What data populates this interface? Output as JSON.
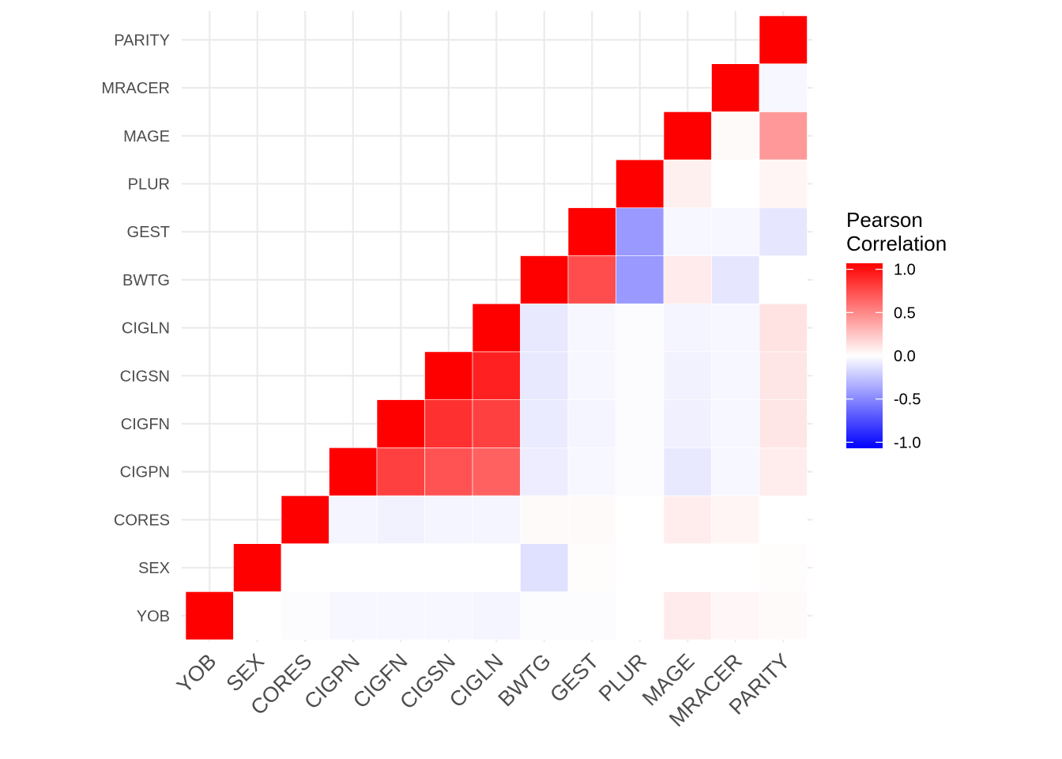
{
  "chart_data": {
    "type": "heatmap",
    "layout": "upper-triangle",
    "variables": [
      "YOB",
      "SEX",
      "CORES",
      "CIGPN",
      "CIGFN",
      "CIGSN",
      "CIGLN",
      "BWTG",
      "GEST",
      "PLUR",
      "MAGE",
      "MRACER",
      "PARITY"
    ],
    "cells": [
      {
        "x": "YOB",
        "y": "YOB",
        "value": 1.0
      },
      {
        "x": "SEX",
        "y": "YOB",
        "value": 0.0
      },
      {
        "x": "CORES",
        "y": "YOB",
        "value": -0.01
      },
      {
        "x": "CIGPN",
        "y": "YOB",
        "value": -0.03
      },
      {
        "x": "CIGFN",
        "y": "YOB",
        "value": -0.03
      },
      {
        "x": "CIGSN",
        "y": "YOB",
        "value": -0.03
      },
      {
        "x": "CIGLN",
        "y": "YOB",
        "value": -0.04
      },
      {
        "x": "BWTG",
        "y": "YOB",
        "value": -0.01
      },
      {
        "x": "GEST",
        "y": "YOB",
        "value": -0.01
      },
      {
        "x": "PLUR",
        "y": "YOB",
        "value": 0.0
      },
      {
        "x": "MAGE",
        "y": "YOB",
        "value": 0.08
      },
      {
        "x": "MRACER",
        "y": "YOB",
        "value": 0.03
      },
      {
        "x": "PARITY",
        "y": "YOB",
        "value": 0.02
      },
      {
        "x": "SEX",
        "y": "SEX",
        "value": 1.0
      },
      {
        "x": "CORES",
        "y": "SEX",
        "value": 0.0
      },
      {
        "x": "CIGPN",
        "y": "SEX",
        "value": 0.0
      },
      {
        "x": "CIGFN",
        "y": "SEX",
        "value": 0.0
      },
      {
        "x": "CIGSN",
        "y": "SEX",
        "value": 0.0
      },
      {
        "x": "CIGLN",
        "y": "SEX",
        "value": 0.0
      },
      {
        "x": "BWTG",
        "y": "SEX",
        "value": -0.12
      },
      {
        "x": "GEST",
        "y": "SEX",
        "value": 0.01
      },
      {
        "x": "PLUR",
        "y": "SEX",
        "value": 0.0
      },
      {
        "x": "MAGE",
        "y": "SEX",
        "value": 0.0
      },
      {
        "x": "MRACER",
        "y": "SEX",
        "value": 0.0
      },
      {
        "x": "PARITY",
        "y": "SEX",
        "value": 0.01
      },
      {
        "x": "CORES",
        "y": "CORES",
        "value": 1.0
      },
      {
        "x": "CIGPN",
        "y": "CORES",
        "value": -0.04
      },
      {
        "x": "CIGFN",
        "y": "CORES",
        "value": -0.05
      },
      {
        "x": "CIGSN",
        "y": "CORES",
        "value": -0.04
      },
      {
        "x": "CIGLN",
        "y": "CORES",
        "value": -0.04
      },
      {
        "x": "BWTG",
        "y": "CORES",
        "value": 0.02
      },
      {
        "x": "GEST",
        "y": "CORES",
        "value": 0.02
      },
      {
        "x": "PLUR",
        "y": "CORES",
        "value": 0.0
      },
      {
        "x": "MAGE",
        "y": "CORES",
        "value": 0.07
      },
      {
        "x": "MRACER",
        "y": "CORES",
        "value": 0.04
      },
      {
        "x": "PARITY",
        "y": "CORES",
        "value": 0.0
      },
      {
        "x": "CIGPN",
        "y": "CIGPN",
        "value": 1.0
      },
      {
        "x": "CIGFN",
        "y": "CIGPN",
        "value": 0.75
      },
      {
        "x": "CIGSN",
        "y": "CIGPN",
        "value": 0.68
      },
      {
        "x": "CIGLN",
        "y": "CIGPN",
        "value": 0.62
      },
      {
        "x": "BWTG",
        "y": "CIGPN",
        "value": -0.07
      },
      {
        "x": "GEST",
        "y": "CIGPN",
        "value": -0.03
      },
      {
        "x": "PLUR",
        "y": "CIGPN",
        "value": -0.01
      },
      {
        "x": "MAGE",
        "y": "CIGPN",
        "value": -0.09
      },
      {
        "x": "MRACER",
        "y": "CIGPN",
        "value": -0.03
      },
      {
        "x": "PARITY",
        "y": "CIGPN",
        "value": 0.07
      },
      {
        "x": "CIGFN",
        "y": "CIGFN",
        "value": 1.0
      },
      {
        "x": "CIGSN",
        "y": "CIGFN",
        "value": 0.81
      },
      {
        "x": "CIGLN",
        "y": "CIGFN",
        "value": 0.75
      },
      {
        "x": "BWTG",
        "y": "CIGFN",
        "value": -0.08
      },
      {
        "x": "GEST",
        "y": "CIGFN",
        "value": -0.04
      },
      {
        "x": "PLUR",
        "y": "CIGFN",
        "value": -0.01
      },
      {
        "x": "MAGE",
        "y": "CIGFN",
        "value": -0.06
      },
      {
        "x": "MRACER",
        "y": "CIGFN",
        "value": -0.03
      },
      {
        "x": "PARITY",
        "y": "CIGFN",
        "value": 0.1
      },
      {
        "x": "CIGSN",
        "y": "CIGSN",
        "value": 1.0
      },
      {
        "x": "CIGLN",
        "y": "CIGSN",
        "value": 0.87
      },
      {
        "x": "BWTG",
        "y": "CIGSN",
        "value": -0.09
      },
      {
        "x": "GEST",
        "y": "CIGSN",
        "value": -0.03
      },
      {
        "x": "PLUR",
        "y": "CIGSN",
        "value": -0.01
      },
      {
        "x": "MAGE",
        "y": "CIGSN",
        "value": -0.05
      },
      {
        "x": "MRACER",
        "y": "CIGSN",
        "value": -0.03
      },
      {
        "x": "PARITY",
        "y": "CIGSN",
        "value": 0.1
      },
      {
        "x": "CIGLN",
        "y": "CIGLN",
        "value": 1.0
      },
      {
        "x": "BWTG",
        "y": "CIGLN",
        "value": -0.09
      },
      {
        "x": "GEST",
        "y": "CIGLN",
        "value": -0.03
      },
      {
        "x": "PLUR",
        "y": "CIGLN",
        "value": -0.01
      },
      {
        "x": "MAGE",
        "y": "CIGLN",
        "value": -0.04
      },
      {
        "x": "MRACER",
        "y": "CIGLN",
        "value": -0.03
      },
      {
        "x": "PARITY",
        "y": "CIGLN",
        "value": 0.11
      },
      {
        "x": "BWTG",
        "y": "BWTG",
        "value": 1.0
      },
      {
        "x": "GEST",
        "y": "BWTG",
        "value": 0.7
      },
      {
        "x": "PLUR",
        "y": "BWTG",
        "value": -0.4
      },
      {
        "x": "MAGE",
        "y": "BWTG",
        "value": 0.08
      },
      {
        "x": "MRACER",
        "y": "BWTG",
        "value": -0.1
      },
      {
        "x": "PARITY",
        "y": "BWTG",
        "value": 0.0
      },
      {
        "x": "GEST",
        "y": "GEST",
        "value": 1.0
      },
      {
        "x": "PLUR",
        "y": "GEST",
        "value": -0.4
      },
      {
        "x": "MAGE",
        "y": "GEST",
        "value": -0.03
      },
      {
        "x": "MRACER",
        "y": "GEST",
        "value": -0.03
      },
      {
        "x": "PARITY",
        "y": "GEST",
        "value": -0.1
      },
      {
        "x": "PLUR",
        "y": "PLUR",
        "value": 1.0
      },
      {
        "x": "MAGE",
        "y": "PLUR",
        "value": 0.06
      },
      {
        "x": "MRACER",
        "y": "PLUR",
        "value": 0.0
      },
      {
        "x": "PARITY",
        "y": "PLUR",
        "value": 0.04
      },
      {
        "x": "MAGE",
        "y": "MAGE",
        "value": 1.0
      },
      {
        "x": "MRACER",
        "y": "MAGE",
        "value": 0.02
      },
      {
        "x": "PARITY",
        "y": "MAGE",
        "value": 0.4
      },
      {
        "x": "MRACER",
        "y": "MRACER",
        "value": 1.0
      },
      {
        "x": "PARITY",
        "y": "MRACER",
        "value": -0.03
      },
      {
        "x": "PARITY",
        "y": "PARITY",
        "value": 1.0
      }
    ],
    "legend": {
      "title_lines": [
        "Pearson",
        "Correlation"
      ],
      "breaks": [
        1.0,
        0.5,
        0.0,
        -0.5,
        -1.0
      ],
      "labels": [
        "1.0",
        "0.5",
        "0.0",
        "-0.5",
        "-1.0"
      ],
      "limits": [
        -1,
        1
      ],
      "low_color": "#0000ff",
      "mid_color": "#ffffff",
      "high_color": "#ff0000",
      "position": "right"
    },
    "grid": true,
    "xlabel": "",
    "ylabel": ""
  }
}
